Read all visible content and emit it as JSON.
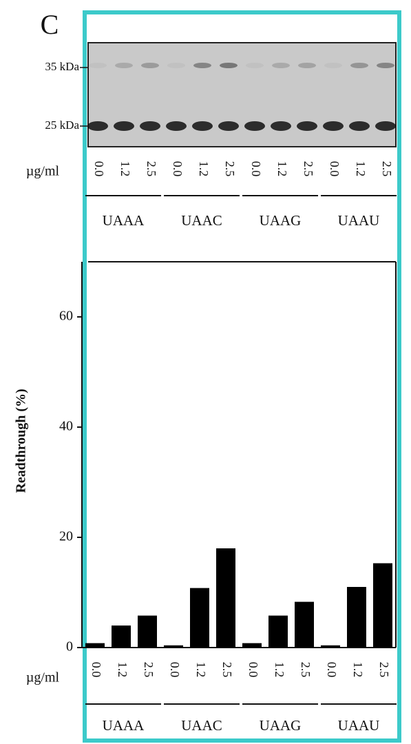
{
  "chart_data": {
    "type": "bar",
    "panel_label": "C",
    "gel": {
      "markers": [
        "35 kDa",
        "25 kDa"
      ],
      "unit_label": "µg/ml",
      "lane_labels": [
        "0.0",
        "1.2",
        "2.5",
        "0.0",
        "1.2",
        "2.5",
        "0.0",
        "1.2",
        "2.5",
        "0.0",
        "1.2",
        "2.5"
      ],
      "groups": [
        "UAAA",
        "UAAC",
        "UAAG",
        "UAAU"
      ]
    },
    "y_label": "Readthrough (%)",
    "x_unit_label": "µg/ml",
    "categories": [
      "0.0",
      "1.2",
      "2.5",
      "0.0",
      "1.2",
      "2.5",
      "0.0",
      "1.2",
      "2.5",
      "0.0",
      "1.2",
      "2.5"
    ],
    "groups": [
      "UAAA",
      "UAAC",
      "UAAG",
      "UAAU"
    ],
    "values": [
      0.8,
      4,
      5.8,
      0.4,
      10.8,
      18,
      0.8,
      5.8,
      8.3,
      0.4,
      11,
      15.3
    ],
    "color": "#000000",
    "ylim": [
      0,
      70
    ],
    "yticks": [
      0,
      20,
      40,
      60
    ]
  }
}
